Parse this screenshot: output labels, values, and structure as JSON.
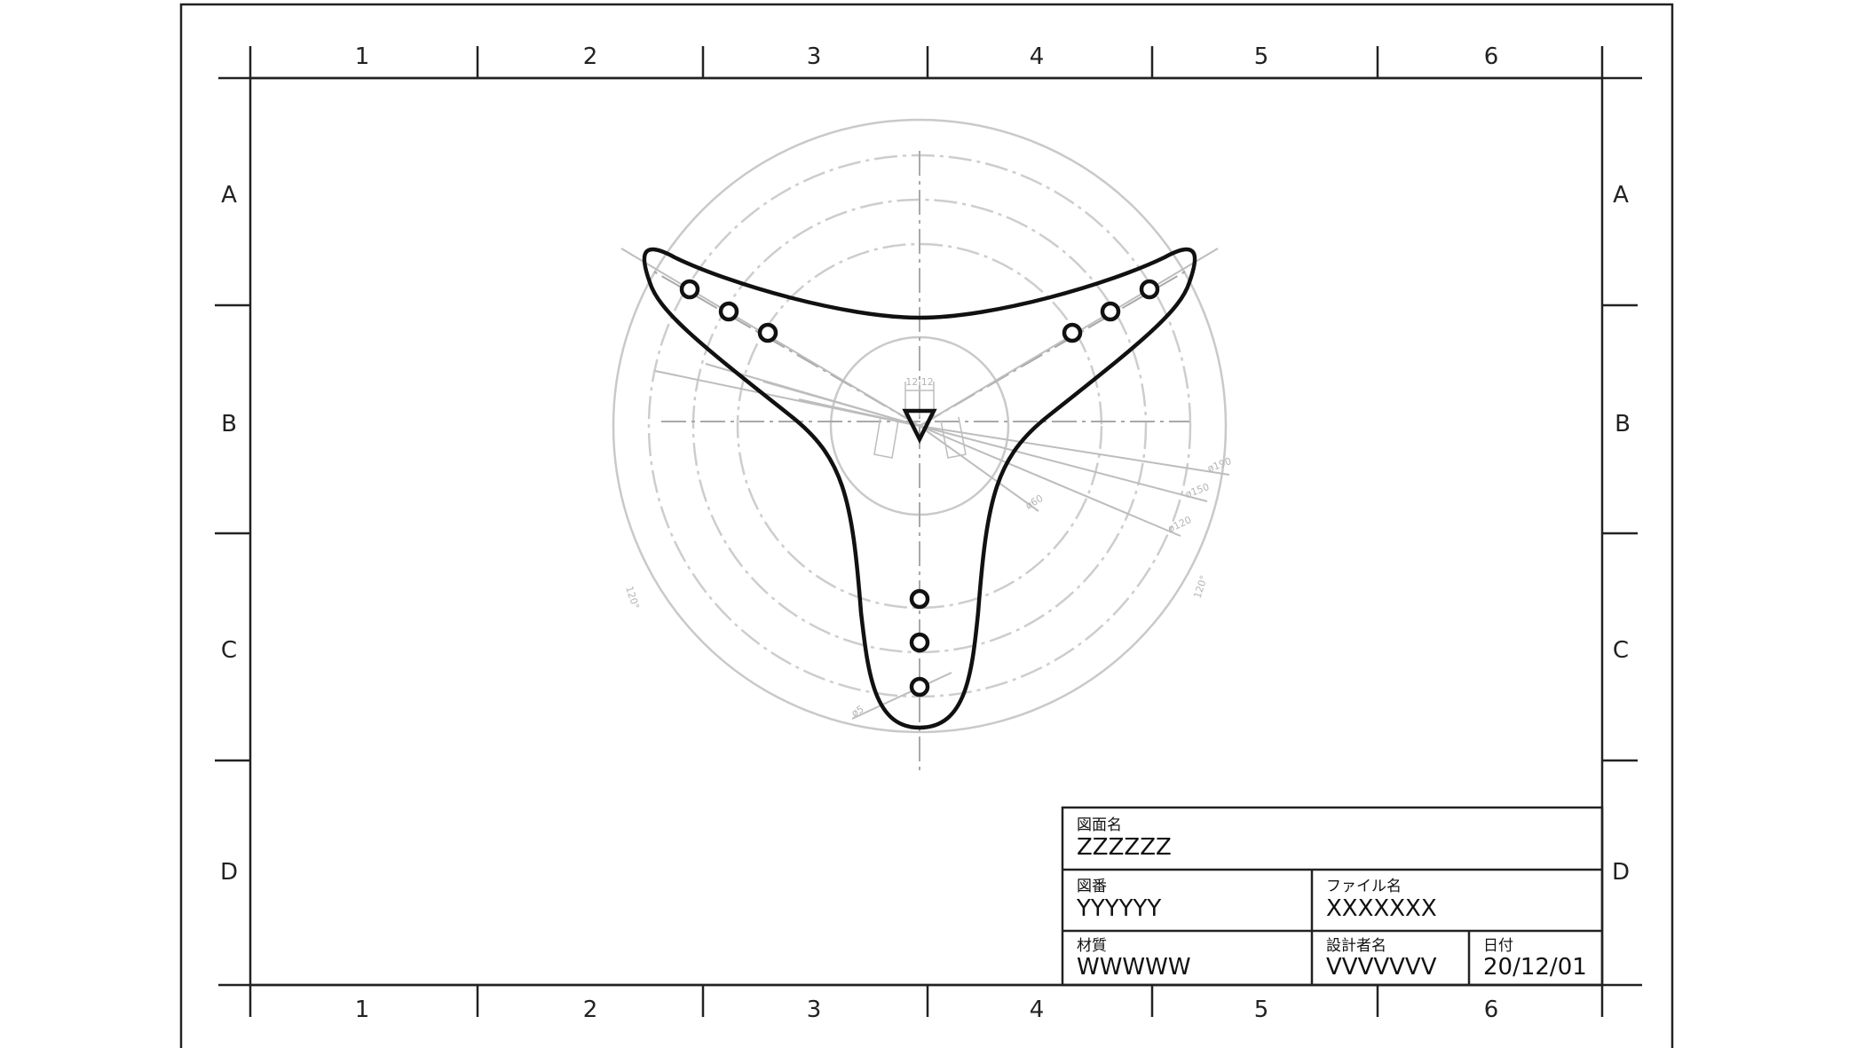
{
  "drawing": {
    "columns": [
      "1",
      "2",
      "3",
      "4",
      "5",
      "6"
    ],
    "rows": [
      "A",
      "B",
      "C",
      "D"
    ],
    "dimensions": {
      "width_label": "12 12",
      "circle_labels": [
        "ø190",
        "ø150",
        "ø120",
        "ø60"
      ],
      "angle_labels": [
        "120°",
        "120°"
      ],
      "hole_label": "ø5"
    }
  },
  "title_block": {
    "drawing_name_caption": "図面名",
    "drawing_name": "ZZZZZZ",
    "drawing_number_caption": "図番",
    "drawing_number": "YYYYYY",
    "file_name_caption": "ファイル名",
    "file_name": "XXXXXXX",
    "material_caption": "材質",
    "material": "WWWWW",
    "designer_caption": "設計者名",
    "designer": "VVVVVVV",
    "date_caption": "日付",
    "date": "20/12/01"
  }
}
